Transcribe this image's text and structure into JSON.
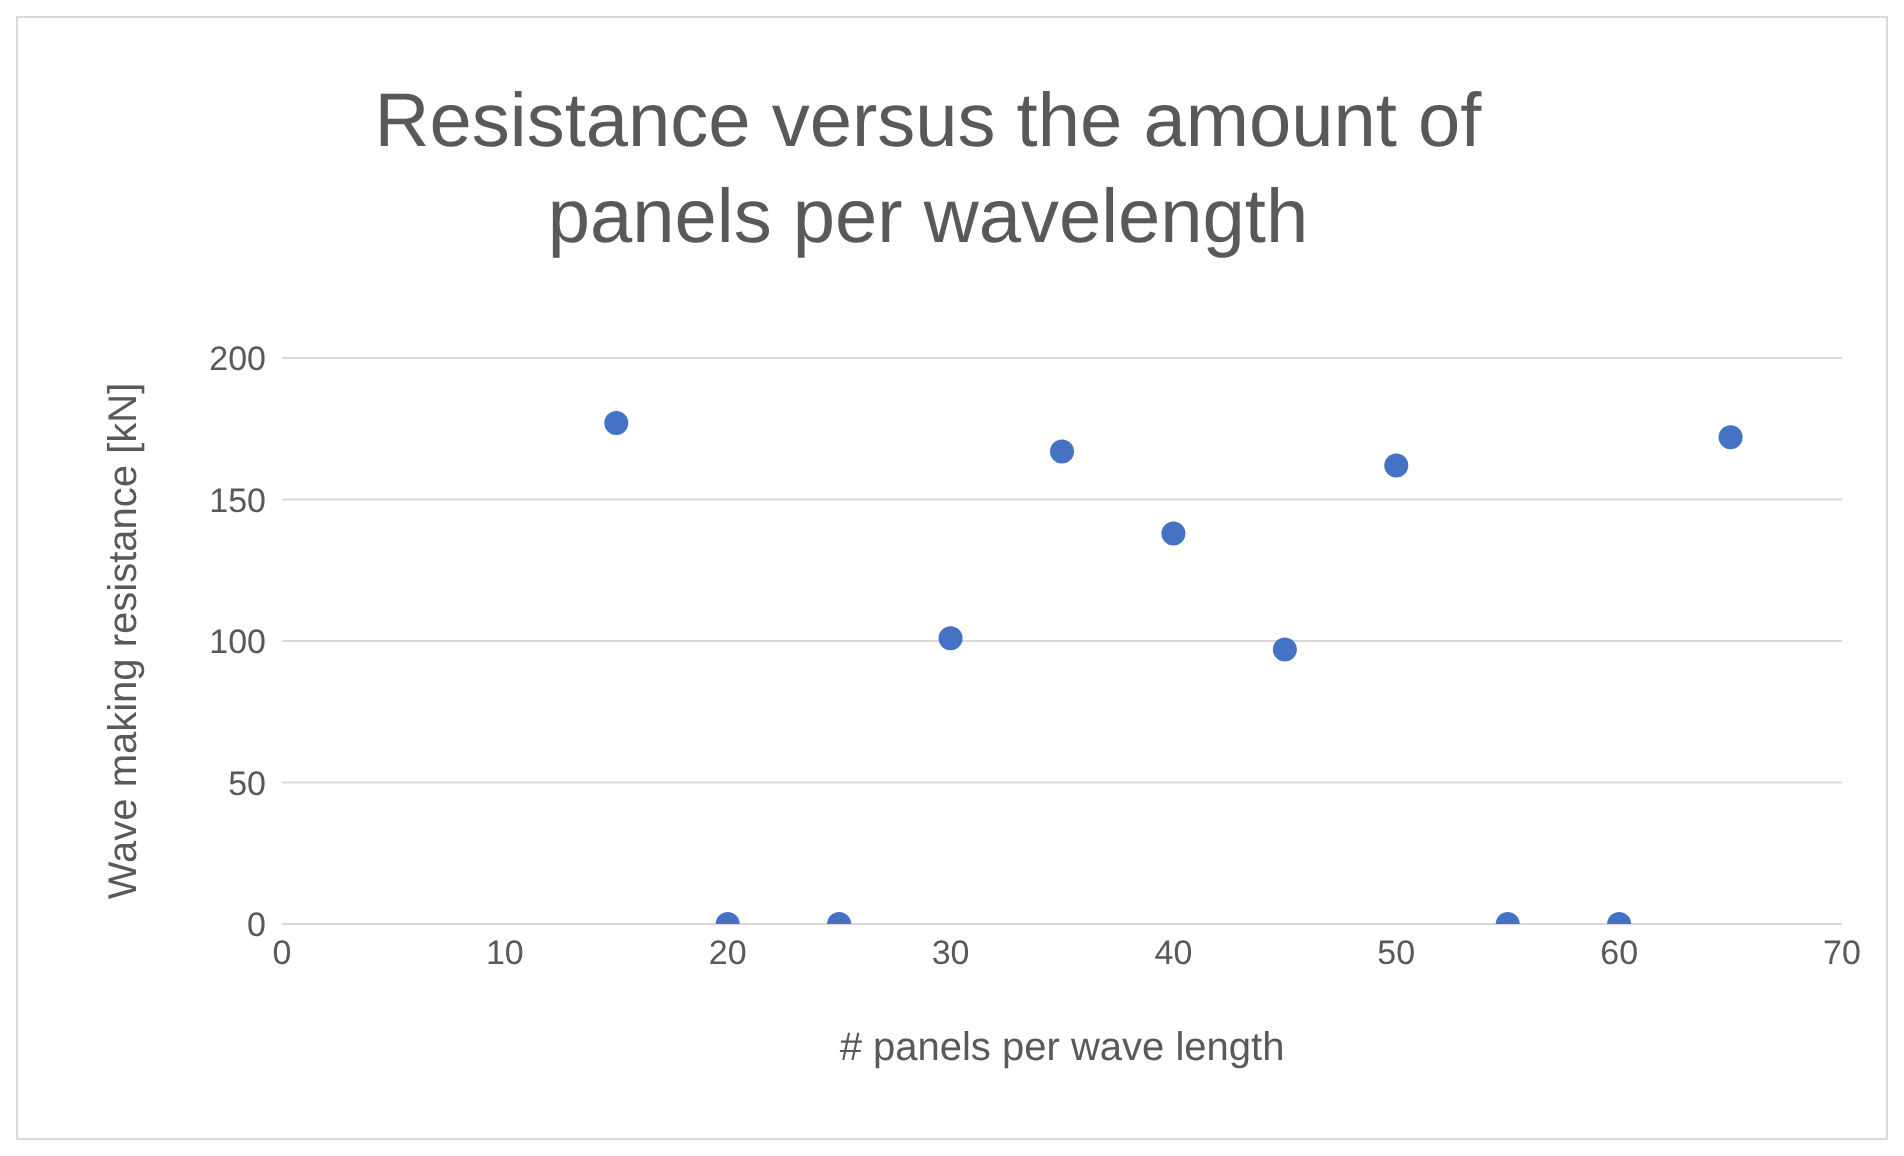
{
  "chart_data": {
    "type": "scatter",
    "title": "Resistance versus the amount of panels per wavelength",
    "xlabel": "# panels per wave length",
    "ylabel": "Wave making resistance [kN]",
    "x": [
      15,
      20,
      25,
      30,
      35,
      40,
      45,
      50,
      55,
      60,
      65
    ],
    "values": [
      177,
      0,
      0,
      101,
      167,
      138,
      97,
      162,
      0,
      0,
      172
    ],
    "color": "#4472c4",
    "marker": "circle",
    "grid": "y",
    "xlim": [
      0,
      70
    ],
    "xticks": [
      0,
      10,
      20,
      30,
      40,
      50,
      60,
      70
    ],
    "ylim": [
      0,
      200
    ],
    "yticks": [
      0,
      50,
      100,
      150,
      200
    ]
  }
}
